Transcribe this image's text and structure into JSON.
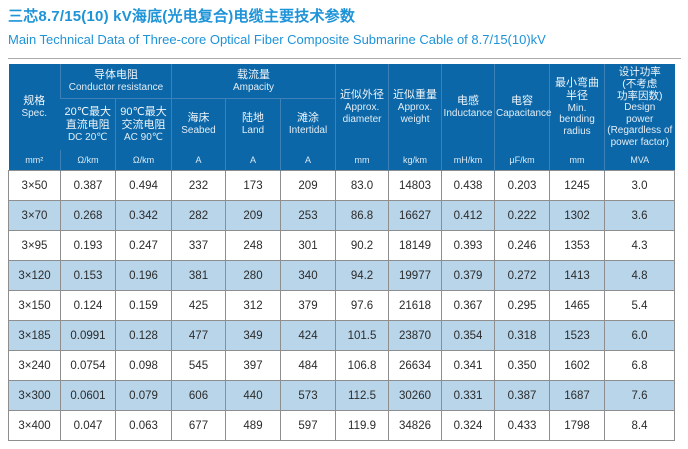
{
  "page": {
    "title_zh": "三芯8.7/15(10) kV海底(光电复合)电缆主要技术参数",
    "title_en": "Main Technical Data of Three-core Optical Fiber Composite Submarine Cable of 8.7/15(10)kV"
  },
  "colors": {
    "title_blue": "#1D93D8",
    "header_blue": "#0B67A8",
    "header_divider": "#3C82B7",
    "stripe_blue": "#B9D5EA",
    "border_gray": "#8E8E8E"
  },
  "table": {
    "header": {
      "spec": {
        "zh": "规格",
        "en": "Spec."
      },
      "conductor_group": {
        "zh": "导体电阻",
        "en": "Conductor resistance"
      },
      "ampacity_group": {
        "zh": "载流量",
        "en": "Ampacity"
      },
      "dc20": {
        "zh": "20℃最大\n直流电阻",
        "en": "DC 20℃"
      },
      "ac90": {
        "zh": "90℃最大\n交流电阻",
        "en": "AC 90℃"
      },
      "seabed": {
        "zh": "海床",
        "en": "Seabed"
      },
      "land": {
        "zh": "陆地",
        "en": "Land"
      },
      "intertidal": {
        "zh": "滩涂",
        "en": "Intertidal"
      },
      "diameter": {
        "zh": "近似外径",
        "en": "Approx.\ndiameter"
      },
      "weight": {
        "zh": "近似重量",
        "en": "Approx.\nweight"
      },
      "inductance": {
        "zh": "电感",
        "en": "Inductance"
      },
      "capacitance": {
        "zh": "电容",
        "en": "Capacitance"
      },
      "bending": {
        "zh": "最小弯曲\n半径",
        "en": "Min.\nbending\nradius"
      },
      "power": {
        "zh": "设计功率\n(不考虑\n功率因数)",
        "en": "Design\npower\n(Regardless of\npower factor)"
      }
    },
    "units": [
      "mm²",
      "Ω/km",
      "Ω/km",
      "A",
      "A",
      "A",
      "mm",
      "kg/km",
      "mH/km",
      "μF/km",
      "mm",
      "MVA"
    ],
    "rows": [
      [
        "3×50",
        "0.387",
        "0.494",
        "232",
        "173",
        "209",
        "83.0",
        "14803",
        "0.438",
        "0.203",
        "1245",
        "3.0"
      ],
      [
        "3×70",
        "0.268",
        "0.342",
        "282",
        "209",
        "253",
        "86.8",
        "16627",
        "0.412",
        "0.222",
        "1302",
        "3.6"
      ],
      [
        "3×95",
        "0.193",
        "0.247",
        "337",
        "248",
        "301",
        "90.2",
        "18149",
        "0.393",
        "0.246",
        "1353",
        "4.3"
      ],
      [
        "3×120",
        "0.153",
        "0.196",
        "381",
        "280",
        "340",
        "94.2",
        "19977",
        "0.379",
        "0.272",
        "1413",
        "4.8"
      ],
      [
        "3×150",
        "0.124",
        "0.159",
        "425",
        "312",
        "379",
        "97.6",
        "21618",
        "0.367",
        "0.295",
        "1465",
        "5.4"
      ],
      [
        "3×185",
        "0.0991",
        "0.128",
        "477",
        "349",
        "424",
        "101.5",
        "23870",
        "0.354",
        "0.318",
        "1523",
        "6.0"
      ],
      [
        "3×240",
        "0.0754",
        "0.098",
        "545",
        "397",
        "484",
        "106.8",
        "26634",
        "0.341",
        "0.350",
        "1602",
        "6.8"
      ],
      [
        "3×300",
        "0.0601",
        "0.079",
        "606",
        "440",
        "573",
        "112.5",
        "30260",
        "0.331",
        "0.387",
        "1687",
        "7.6"
      ],
      [
        "3×400",
        "0.047",
        "0.063",
        "677",
        "489",
        "597",
        "119.9",
        "34826",
        "0.324",
        "0.433",
        "1798",
        "8.4"
      ]
    ]
  }
}
